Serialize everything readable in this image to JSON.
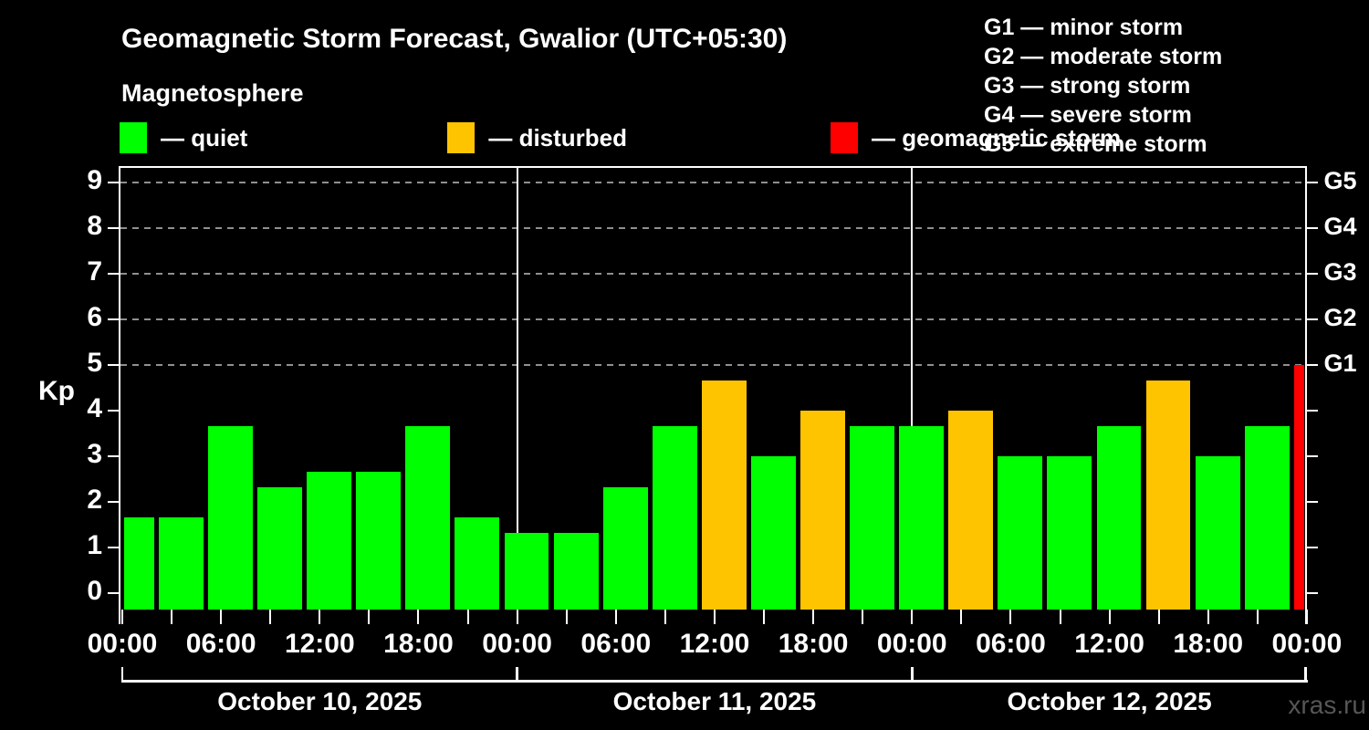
{
  "header": {
    "title": "Geomagnetic Storm Forecast, Gwalior (UTC+05:30)",
    "subtitle": "Magnetosphere"
  },
  "legend": {
    "items": [
      {
        "name": "quiet",
        "label": "— quiet",
        "color": "#00ff00"
      },
      {
        "name": "disturbed",
        "label": "— disturbed",
        "color": "#ffc400"
      },
      {
        "name": "storm",
        "label": "— geomagnetic storm",
        "color": "#ff0000"
      }
    ]
  },
  "storm_scale_legend": [
    "G1 — minor storm",
    "G2 — moderate storm",
    "G3 — strong storm",
    "G4 — severe storm",
    "G5 — extreme storm"
  ],
  "chart_data": {
    "type": "bar",
    "title": "Geomagnetic Storm Forecast, Gwalior (UTC+05:30)",
    "ylabel": "Kp",
    "ylim": [
      0,
      9.7
    ],
    "yticks": [
      0,
      1,
      2,
      3,
      4,
      5,
      6,
      7,
      8,
      9
    ],
    "gridlines_kp": [
      5,
      6,
      7,
      8,
      9
    ],
    "grid": "dashed horizontal at storm levels only",
    "legend_position": "top",
    "right_axis": [
      {
        "kp": 5,
        "label": "G1"
      },
      {
        "kp": 6,
        "label": "G2"
      },
      {
        "kp": 7,
        "label": "G3"
      },
      {
        "kp": 8,
        "label": "G4"
      },
      {
        "kp": 9,
        "label": "G5"
      }
    ],
    "interval_hours": 3,
    "days": [
      {
        "date": "October 10, 2025",
        "values": [
          1.67,
          1.67,
          3.67,
          2.33,
          2.67,
          2.67,
          3.67,
          1.67
        ],
        "conditions": [
          "quiet",
          "quiet",
          "quiet",
          "quiet",
          "quiet",
          "quiet",
          "quiet",
          "quiet"
        ]
      },
      {
        "date": "October 11, 2025",
        "values": [
          1.33,
          1.33,
          2.33,
          3.67,
          4.67,
          3.0,
          4.0,
          3.67
        ],
        "conditions": [
          "quiet",
          "quiet",
          "quiet",
          "quiet",
          "disturbed",
          "quiet",
          "disturbed",
          "quiet"
        ]
      },
      {
        "date": "October 12, 2025",
        "values": [
          3.67,
          4.0,
          3.0,
          3.0,
          3.67,
          4.67,
          3.0,
          3.67
        ],
        "conditions": [
          "quiet",
          "disturbed",
          "quiet",
          "quiet",
          "quiet",
          "disturbed",
          "quiet",
          "quiet"
        ]
      }
    ],
    "partial_next_day": {
      "value": 5.0,
      "condition": "storm"
    },
    "x_tick_labels": [
      "00:00",
      "06:00",
      "12:00",
      "18:00",
      "00:00",
      "06:00",
      "12:00",
      "18:00",
      "00:00",
      "06:00",
      "12:00",
      "18:00",
      "00:00"
    ],
    "colors": {
      "quiet": "#00ff00",
      "disturbed": "#ffc400",
      "storm": "#ff0000"
    }
  },
  "watermark": "xras.ru"
}
